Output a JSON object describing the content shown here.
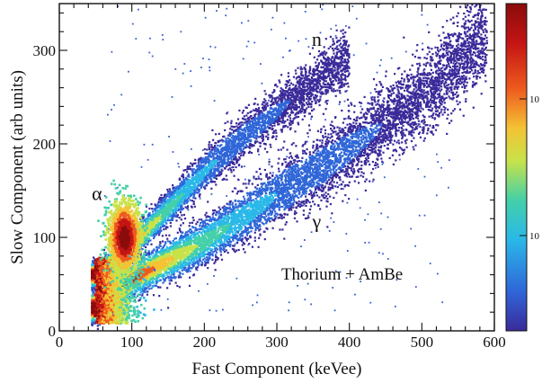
{
  "chart_data": {
    "type": "heatmap",
    "title": "",
    "xlabel": "Fast Component (keVee)",
    "ylabel": "Slow Component (arb units)",
    "xlim": [
      0,
      600
    ],
    "ylim": [
      0,
      350
    ],
    "x_ticks": [
      0,
      100,
      200,
      300,
      400,
      500,
      600
    ],
    "y_ticks": [
      0,
      100,
      200,
      300
    ],
    "grid": false,
    "colorbar": {
      "scale": "log",
      "tick_labels": [
        "10",
        "10"
      ],
      "colors": [
        "#3a2a9a",
        "#2f66d8",
        "#2ab8e8",
        "#44d0a8",
        "#c8e24a",
        "#f4c234",
        "#ee5a1e",
        "#c41414",
        "#8a0c0c"
      ]
    },
    "series": [
      {
        "name": "n",
        "band": "neutron",
        "ridge": [
          [
            55,
            60
          ],
          [
            100,
            92
          ],
          [
            150,
            130
          ],
          [
            200,
            170
          ],
          [
            250,
            205
          ],
          [
            300,
            235
          ],
          [
            350,
            265
          ],
          [
            400,
            293
          ]
        ],
        "x_range": [
          45,
          400
        ]
      },
      {
        "name": "γ",
        "band": "gamma",
        "ridge": [
          [
            60,
            25
          ],
          [
            100,
            55
          ],
          [
            200,
            95
          ],
          [
            300,
            145
          ],
          [
            400,
            195
          ],
          [
            500,
            250
          ],
          [
            580,
            310
          ]
        ],
        "x_range": [
          45,
          590
        ]
      },
      {
        "name": "α",
        "band": "alpha",
        "center": [
          90,
          100
        ],
        "spread": [
          12,
          20
        ]
      }
    ],
    "annotations": [
      {
        "text": "n",
        "x": 355,
        "y": 305
      },
      {
        "text": "α",
        "x": 52,
        "y": 140
      },
      {
        "text": "γ",
        "x": 355,
        "y": 110
      },
      {
        "text": "Thorium + AmBe",
        "x": 390,
        "y": 55
      }
    ]
  }
}
